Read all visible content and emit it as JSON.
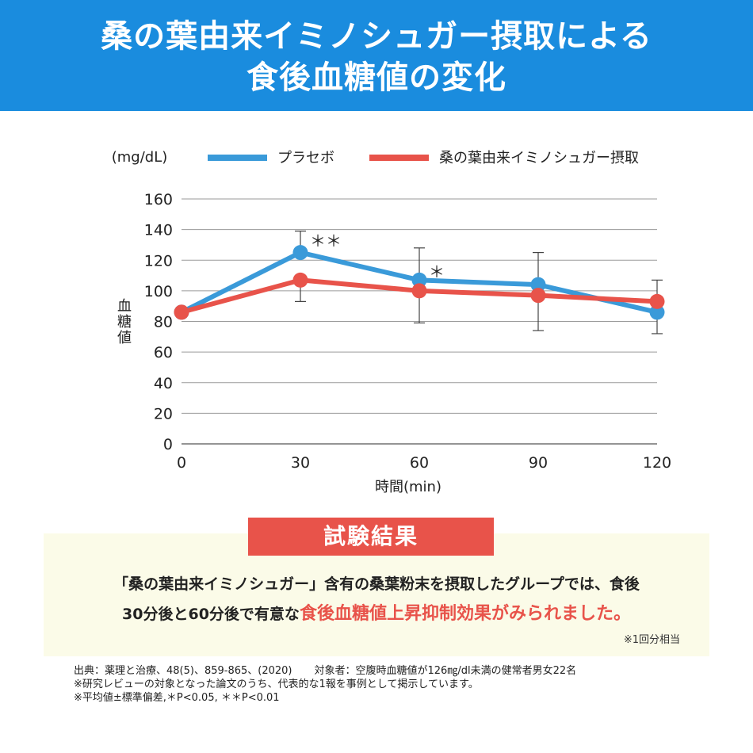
{
  "header": {
    "title_line1": "桑の葉由来イミノシュガー摂取による",
    "title_line2": "食後血糖値の変化",
    "bg_color": "#1a8cde"
  },
  "chart_data": {
    "type": "line",
    "unit_label": "(mg/dL)",
    "ylabel": "血糖値",
    "xlabel": "時間(min)",
    "x": [
      0,
      30,
      60,
      90,
      120
    ],
    "ylim": [
      0,
      160
    ],
    "yticks": [
      0,
      20,
      40,
      60,
      80,
      100,
      120,
      140,
      160
    ],
    "xlim": [
      0,
      120
    ],
    "grid": true,
    "legend_position": "top",
    "series": [
      {
        "name": "プラセボ",
        "color": "#3a9ad9",
        "values": [
          86,
          125,
          107,
          104,
          86
        ],
        "err_upper": [
          null,
          139,
          128,
          125,
          null
        ]
      },
      {
        "name": "桑の葉由来イミノシュガー摂取",
        "color": "#e8534a",
        "values": [
          86,
          107,
          100,
          97,
          93
        ],
        "err_lower": [
          null,
          93,
          79,
          74,
          72
        ],
        "err_upper": [
          null,
          null,
          null,
          null,
          107
        ]
      }
    ],
    "annotations": [
      {
        "x": 30,
        "y": 133,
        "text": "＊＊"
      },
      {
        "x": 60,
        "y": 113,
        "text": "＊"
      }
    ]
  },
  "result": {
    "title": "試験結果",
    "line1": "「桑の葉由来イミノシュガー」含有の桑葉粉末を摂取したグループでは、食後",
    "line2_plain": "30分後と60分後で有意な",
    "line2_highlight": "食後血糖値上昇抑制効果がみられました。",
    "note": "※1回分相当",
    "accent_color": "#e8534a"
  },
  "footnotes": {
    "source": "出典：薬理と治療、48(5)、859-865、(2020)",
    "subjects": "対象者：空腹時血糖値が126㎎/dl未満の健常者男女22名",
    "note1": "※研究レビューの対象となった論文のうち、代表的な1報を事例として掲示しています。",
    "note2": "※平均値±標準偏差,＊P<0.05, ＊＊P<0.01"
  }
}
